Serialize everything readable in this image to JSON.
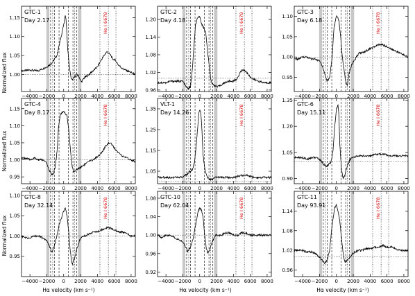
{
  "figure": {
    "xlabel": "Hα velocity (km s⁻¹)",
    "ylabel": "Normalized flux",
    "he_label": "He I 6678"
  },
  "chart_data": [
    {
      "type": "line",
      "name": "GTC-1",
      "day": "Day 2.17",
      "xlim": [
        -5000,
        8500
      ],
      "ylim": [
        0.955,
        1.18
      ],
      "yticks": [
        1.0,
        1.05,
        1.1,
        1.15
      ],
      "ytick_labels": [
        "1.00",
        "1.05",
        "1.10",
        "1.15"
      ],
      "x_ticks_labeled": false,
      "x": [
        -5000,
        -4500,
        -4000,
        -3500,
        -3000,
        -2500,
        -2000,
        -1700,
        -1400,
        -1100,
        -800,
        -500,
        -300,
        -100,
        0,
        100,
        200,
        300,
        400,
        500,
        600,
        700,
        800,
        900,
        1000,
        1200,
        1500,
        1800,
        2100,
        2400,
        2700,
        3000,
        3500,
        4000,
        4500,
        4800,
        5100,
        5400,
        5600,
        5800,
        6000,
        6200,
        6500,
        7000,
        7500,
        8000,
        8500
      ],
      "y": [
        1.01,
        1.01,
        1.012,
        1.01,
        1.01,
        1.015,
        1.02,
        1.025,
        1.03,
        1.04,
        1.05,
        1.08,
        1.1,
        1.12,
        1.13,
        1.14,
        1.16,
        1.14,
        1.1,
        1.06,
        1.04,
        1.02,
        1.0,
        0.99,
        0.985,
        0.99,
        1.0,
        0.995,
        0.98,
        0.99,
        0.995,
        1.0,
        1.01,
        1.02,
        1.04,
        1.05,
        1.06,
        1.055,
        1.05,
        1.04,
        1.04,
        1.035,
        1.025,
        1.015,
        1.01,
        1.005,
        1.0
      ]
    },
    {
      "type": "line",
      "name": "GTC-2",
      "day": "Day 4.18",
      "xlim": [
        -5000,
        8500
      ],
      "ylim": [
        0.955,
        1.245
      ],
      "yticks": [
        0.96,
        1.02,
        1.08,
        1.14,
        1.2
      ],
      "ytick_labels": [
        "0.96",
        "1.02",
        "1.08",
        "1.14",
        "1.20"
      ],
      "x_ticks_labeled": false,
      "x": [
        -5000,
        -4500,
        -4000,
        -3500,
        -3000,
        -2500,
        -2000,
        -1700,
        -1400,
        -1100,
        -900,
        -700,
        -500,
        -300,
        -100,
        0,
        100,
        300,
        500,
        700,
        900,
        1100,
        1300,
        1500,
        1800,
        2100,
        2400,
        2700,
        3000,
        3500,
        4000,
        4500,
        4800,
        5100,
        5400,
        5700,
        6000,
        6500,
        7000,
        7500,
        8000,
        8500
      ],
      "y": [
        0.985,
        0.985,
        0.985,
        0.99,
        0.99,
        0.99,
        0.99,
        0.975,
        0.965,
        0.97,
        1.02,
        1.1,
        1.18,
        1.2,
        1.21,
        1.21,
        1.2,
        1.18,
        1.17,
        1.16,
        1.1,
        1.05,
        1.0,
        0.98,
        0.975,
        0.97,
        0.975,
        0.98,
        0.985,
        0.99,
        0.99,
        1.0,
        1.02,
        1.03,
        1.025,
        1.015,
        1.005,
        0.995,
        0.99,
        0.985,
        0.985,
        0.985
      ]
    },
    {
      "type": "line",
      "name": "GTC-3",
      "day": "Day 6.18",
      "xlim": [
        -5000,
        8500
      ],
      "ylim": [
        0.915,
        1.125
      ],
      "yticks": [
        0.95,
        1.0,
        1.05,
        1.1
      ],
      "ytick_labels": [
        "0.95",
        "1.00",
        "1.05",
        "1.10"
      ],
      "x_ticks_labeled": false,
      "x": [
        -5000,
        -4500,
        -4000,
        -3500,
        -3000,
        -2500,
        -2000,
        -1700,
        -1400,
        -1100,
        -800,
        -500,
        -300,
        -100,
        0,
        100,
        300,
        500,
        700,
        900,
        1100,
        1300,
        1500,
        1800,
        2100,
        2400,
        2700,
        3000,
        3500,
        4000,
        4500,
        5000,
        5500,
        6000,
        6500,
        7000,
        7500,
        8000,
        8500
      ],
      "y": [
        0.995,
        0.995,
        1.0,
        1.0,
        0.995,
        0.995,
        0.99,
        0.98,
        0.96,
        0.94,
        0.95,
        1.0,
        1.07,
        1.09,
        1.1,
        1.1,
        1.09,
        1.05,
        1.0,
        0.97,
        0.94,
        0.93,
        0.96,
        0.98,
        0.99,
        1.0,
        1.01,
        1.01,
        1.015,
        1.02,
        1.025,
        1.03,
        1.03,
        1.025,
        1.02,
        1.015,
        1.01,
        1.005,
        1.0
      ]
    },
    {
      "type": "line",
      "name": "GTC-4",
      "day": "Day 8.17",
      "xlim": [
        -5000,
        8500
      ],
      "ylim": [
        0.93,
        1.18
      ],
      "yticks": [
        0.95,
        1.0,
        1.05,
        1.1,
        1.15
      ],
      "ytick_labels": [
        "0.95",
        "1.00",
        "1.05",
        "1.10",
        "1.15"
      ],
      "x_ticks_labeled": false,
      "x": [
        -5000,
        -4500,
        -4000,
        -3500,
        -3000,
        -2500,
        -2000,
        -1800,
        -1600,
        -1400,
        -1200,
        -1000,
        -800,
        -600,
        -400,
        -200,
        0,
        200,
        400,
        600,
        800,
        1000,
        1200,
        1500,
        1800,
        2100,
        2400,
        2700,
        3000,
        3500,
        4000,
        4500,
        5000,
        5300,
        5600,
        6000,
        6500,
        7000,
        7500,
        8000,
        8500
      ],
      "y": [
        1.005,
        1.005,
        1.0,
        1.005,
        1.0,
        1.0,
        0.99,
        0.975,
        0.965,
        0.955,
        0.96,
        0.98,
        1.02,
        1.1,
        1.13,
        1.14,
        1.14,
        1.135,
        1.13,
        1.09,
        1.03,
        0.98,
        0.965,
        0.97,
        0.975,
        0.98,
        0.985,
        0.99,
        0.995,
        1.0,
        1.01,
        1.02,
        1.04,
        1.05,
        1.05,
        1.035,
        1.02,
        1.01,
        1.005,
        1.0,
        0.995
      ]
    },
    {
      "type": "line",
      "name": "VLT-1",
      "day": "Day 14.26",
      "xlim": [
        -5000,
        8500
      ],
      "ylim": [
        0.99,
        1.4
      ],
      "yticks": [
        1.05,
        1.15,
        1.25,
        1.35
      ],
      "ytick_labels": [
        "1.05",
        "1.15",
        "1.25",
        "1.35"
      ],
      "x_ticks_labeled": false,
      "x": [
        -5000,
        -4500,
        -4000,
        -3500,
        -3000,
        -2500,
        -2000,
        -1700,
        -1400,
        -1100,
        -800,
        -600,
        -400,
        -200,
        -100,
        0,
        100,
        200,
        300,
        400,
        600,
        800,
        1000,
        1200,
        1500,
        1800,
        2100,
        2500,
        3000,
        3500,
        4000,
        4500,
        5000,
        5500,
        6000,
        6500,
        7000,
        7500,
        8000,
        8500
      ],
      "y": [
        1.02,
        1.02,
        1.02,
        1.02,
        1.02,
        1.02,
        1.02,
        1.03,
        1.04,
        1.05,
        1.06,
        1.1,
        1.18,
        1.28,
        1.33,
        1.35,
        1.34,
        1.3,
        1.22,
        1.13,
        1.06,
        1.03,
        1.015,
        1.01,
        1.01,
        1.02,
        1.02,
        1.02,
        1.02,
        1.02,
        1.02,
        1.025,
        1.03,
        1.03,
        1.025,
        1.02,
        1.02,
        1.02,
        1.02,
        1.02
      ]
    },
    {
      "type": "line",
      "name": "GTC-6",
      "day": "Day 15.11",
      "xlim": [
        -5000,
        8500
      ],
      "ylim": [
        0.87,
        1.36
      ],
      "yticks": [
        0.9,
        1.05,
        1.2,
        1.35
      ],
      "ytick_labels": [
        "0.90",
        "1.05",
        "1.20",
        "1.35"
      ],
      "x_ticks_labeled": false,
      "x": [
        -5000,
        -4500,
        -4000,
        -3500,
        -3000,
        -2500,
        -2000,
        -1800,
        -1500,
        -1200,
        -900,
        -600,
        -400,
        -200,
        0,
        200,
        300,
        400,
        600,
        800,
        1000,
        1200,
        1500,
        1800,
        2100,
        2500,
        3000,
        3500,
        4000,
        4500,
        5000,
        5500,
        6000,
        6500,
        7000,
        7500,
        8000,
        8500
      ],
      "y": [
        1.02,
        1.02,
        1.02,
        1.01,
        1.02,
        1.02,
        1.01,
        1.0,
        0.98,
        0.97,
        0.98,
        1.0,
        1.06,
        1.2,
        1.3,
        1.32,
        1.26,
        1.1,
        0.95,
        0.9,
        0.92,
        0.96,
        1.0,
        1.02,
        1.02,
        1.03,
        1.03,
        1.03,
        1.03,
        1.035,
        1.04,
        1.04,
        1.035,
        1.03,
        1.03,
        1.03,
        1.03,
        1.03
      ]
    },
    {
      "type": "line",
      "name": "GTC-8",
      "day": "Day 32.14",
      "xlim": [
        -5000,
        8500
      ],
      "ylim": [
        0.9,
        1.11
      ],
      "yticks": [
        0.95,
        1.0,
        1.05,
        1.1
      ],
      "ytick_labels": [
        "0.95",
        "1.00",
        "1.05",
        "1.10"
      ],
      "x_ticks_labeled": true,
      "x": [
        -5000,
        -4500,
        -4000,
        -3500,
        -3000,
        -2500,
        -2000,
        -1700,
        -1400,
        -1100,
        -800,
        -500,
        -200,
        0,
        200,
        400,
        600,
        800,
        1000,
        1300,
        1600,
        1900,
        2200,
        2600,
        3000,
        3500,
        4000,
        4500,
        5000,
        5500,
        6000,
        6500,
        7000,
        7500,
        8000,
        8500
      ],
      "y": [
        1.0,
        0.995,
        0.995,
        1.0,
        1.0,
        0.995,
        0.99,
        0.975,
        0.96,
        0.975,
        1.0,
        1.03,
        1.05,
        1.06,
        1.07,
        1.05,
        1.01,
        0.96,
        0.93,
        0.945,
        0.97,
        0.99,
        1.0,
        1.0,
        1.005,
        1.01,
        1.01,
        1.015,
        1.02,
        1.02,
        1.015,
        1.01,
        1.01,
        1.005,
        1.0,
        1.0
      ]
    },
    {
      "type": "line",
      "name": "GTC-10",
      "day": "Day 62.04",
      "xlim": [
        -5000,
        8500
      ],
      "ylim": [
        0.91,
        1.095
      ],
      "yticks": [
        0.92,
        0.96,
        1.0,
        1.04,
        1.08
      ],
      "ytick_labels": [
        "0.92",
        "0.96",
        "1.00",
        "1.04",
        "1.08"
      ],
      "x_ticks_labeled": true,
      "x": [
        -5000,
        -4500,
        -4000,
        -3500,
        -3000,
        -2500,
        -2000,
        -1700,
        -1400,
        -1100,
        -800,
        -500,
        -200,
        0,
        200,
        400,
        600,
        800,
        1000,
        1300,
        1600,
        1900,
        2200,
        2600,
        3000,
        3500,
        4000,
        4500,
        5000,
        5500,
        6000,
        6500,
        7000,
        7500,
        8000,
        8500
      ],
      "y": [
        1.0,
        0.995,
        1.0,
        1.0,
        0.995,
        0.99,
        0.985,
        0.975,
        0.965,
        0.975,
        0.99,
        1.02,
        1.05,
        1.06,
        1.055,
        1.04,
        1.0,
        0.97,
        0.96,
        0.975,
        0.99,
        1.0,
        1.0,
        1.0,
        1.005,
        1.005,
        1.0,
        1.0,
        1.005,
        1.005,
        1.0,
        1.0,
        1.0,
        1.0,
        1.0,
        1.0
      ]
    },
    {
      "type": "line",
      "name": "GTC-11",
      "day": "Day 93.91",
      "xlim": [
        -5000,
        8500
      ],
      "ylim": [
        0.94,
        1.2
      ],
      "yticks": [
        0.96,
        1.02,
        1.08,
        1.14
      ],
      "ytick_labels": [
        "0.96",
        "1.02",
        "1.08",
        "1.14"
      ],
      "x_ticks_labeled": true,
      "x": [
        -5000,
        -4500,
        -4000,
        -3500,
        -3000,
        -2500,
        -2000,
        -1700,
        -1400,
        -1100,
        -800,
        -500,
        -200,
        0,
        200,
        400,
        600,
        800,
        1000,
        1300,
        1600,
        1900,
        2200,
        2600,
        3000,
        3500,
        4000,
        4500,
        5000,
        5500,
        6000,
        6500,
        7000,
        7500,
        8000,
        8500
      ],
      "y": [
        1.02,
        1.02,
        1.02,
        1.015,
        1.015,
        1.01,
        1.0,
        0.99,
        0.98,
        0.99,
        1.02,
        1.1,
        1.15,
        1.16,
        1.14,
        1.11,
        1.06,
        1.01,
        0.985,
        0.99,
        1.0,
        1.01,
        1.015,
        1.02,
        1.02,
        1.025,
        1.025,
        1.03,
        1.03,
        1.035,
        1.03,
        1.03,
        1.025,
        1.02,
        1.02,
        1.02
      ]
    }
  ],
  "shared": {
    "xticks": [
      -4000,
      -2000,
      0,
      2000,
      4000,
      6000,
      8000
    ],
    "xtick_labels": [
      "−4000",
      "−2000",
      "0",
      "2000",
      "4000",
      "6000",
      "8000"
    ],
    "gray_bands": [
      [
        -2050,
        -1700
      ],
      [
        1700,
        2100
      ]
    ],
    "dashed_lines": [
      -1550,
      -1100,
      -550,
      550,
      1100,
      1550
    ],
    "dotted_lines": [
      -1300,
      1300,
      4300,
      5300,
      6200
    ],
    "he_line_x": 5300,
    "continuum_y": 1.0
  },
  "colors": {
    "line": "#000000",
    "band": "#c8c8c8",
    "he": "#d40000"
  }
}
